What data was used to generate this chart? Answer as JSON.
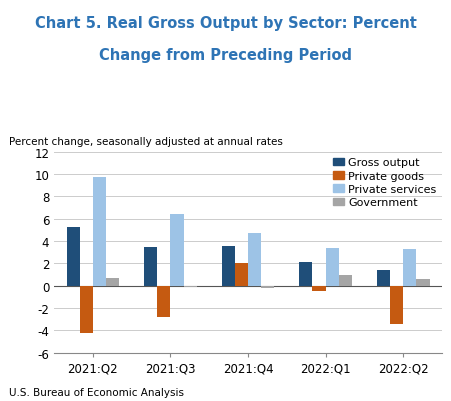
{
  "title_line1": "Chart 5. Real Gross Output by Sector: Percent",
  "title_line2": "Change from Preceding Period",
  "ylabel": "Percent change, seasonally adjusted at annual rates",
  "categories": [
    "2021:Q2",
    "2021:Q3",
    "2021:Q4",
    "2022:Q1",
    "2022:Q2"
  ],
  "series": {
    "Gross output": [
      5.3,
      3.5,
      3.6,
      2.1,
      1.4
    ],
    "Private goods": [
      -4.2,
      -2.8,
      2.0,
      -0.5,
      -3.4
    ],
    "Private services": [
      9.7,
      6.4,
      4.7,
      3.4,
      3.3
    ],
    "Government": [
      0.7,
      -0.15,
      -0.2,
      1.0,
      0.6
    ]
  },
  "colors": {
    "Gross output": "#1f4e79",
    "Private goods": "#c55a11",
    "Private services": "#9dc3e6",
    "Government": "#a5a5a5"
  },
  "ylim": [
    -6,
    12
  ],
  "yticks": [
    -6,
    -4,
    -2,
    0,
    2,
    4,
    6,
    8,
    10,
    12
  ],
  "title_color": "#2e74b5",
  "footer": "U.S. Bureau of Economic Analysis",
  "bar_width": 0.17
}
